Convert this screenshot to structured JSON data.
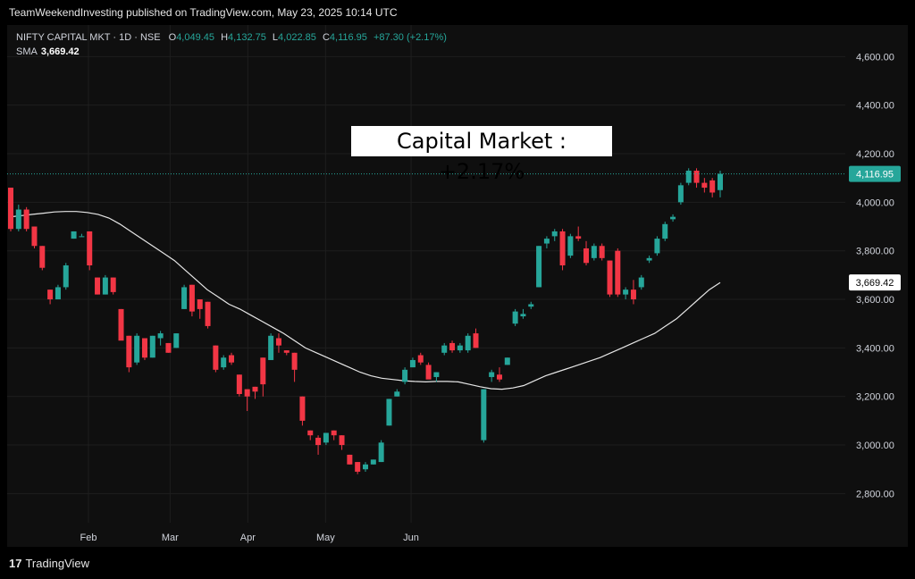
{
  "header": {
    "publisher": "TeamWeekendInvesting published on TradingView.com, May 23, 2025 10:14 UTC"
  },
  "legend": {
    "symbol": "NIFTY CAPITAL MKT · 1D · NSE",
    "open_label": "O",
    "open": "4,049.45",
    "high_label": "H",
    "high": "4,132.75",
    "low_label": "L",
    "low": "4,022.85",
    "close_label": "C",
    "close": "4,116.95",
    "change": "+87.30 (+2.17%)",
    "sma_label": "SMA",
    "sma_value": "3,669.42"
  },
  "annotation": "Capital Market : +2.17%",
  "footer": {
    "logo_mark": "17",
    "brand": "TradingView"
  },
  "colors": {
    "up": "#26a69a",
    "down": "#f23645",
    "sma": "#e6e6e6",
    "grid": "#1e1e1e"
  },
  "chart_data": {
    "type": "candlestick",
    "y_ticks": [
      "4,600.00",
      "4,400.00",
      "4,200.00",
      "4,000.00",
      "3,800.00",
      "3,600.00",
      "3,400.00",
      "3,200.00",
      "3,000.00",
      "2,800.00"
    ],
    "y_tick_values": [
      4600,
      4400,
      4200,
      4000,
      3800,
      3600,
      3400,
      3200,
      3000,
      2800
    ],
    "ylim": [
      2680,
      4730
    ],
    "x_ticks": [
      "Feb",
      "Mar",
      "Apr",
      "May",
      "Jun"
    ],
    "x_tick_index": [
      20,
      41,
      61,
      81,
      103
    ],
    "x_count": 120,
    "last_price_label": "4,116.95",
    "last_price": 4116.95,
    "sma_label": "3,669.42",
    "sma_last": 3669.42,
    "candles": [
      [
        4060,
        4060,
        3880,
        3890
      ],
      [
        3890,
        3990,
        3880,
        3970
      ],
      [
        3970,
        3980,
        3880,
        3890
      ],
      [
        3900,
        3900,
        3810,
        3820
      ],
      [
        3820,
        3820,
        3720,
        3730
      ],
      [
        3640,
        3640,
        3580,
        3600
      ],
      [
        3600,
        3660,
        3600,
        3650
      ],
      [
        3650,
        3750,
        3640,
        3740
      ],
      [
        3850,
        3880,
        3850,
        3880
      ],
      [
        3860,
        3870,
        3860,
        3860
      ],
      [
        3880,
        3880,
        3720,
        3740
      ],
      [
        3690,
        3690,
        3620,
        3620
      ],
      [
        3620,
        3700,
        3620,
        3690
      ],
      [
        3690,
        3690,
        3620,
        3630
      ],
      [
        3560,
        3560,
        3440,
        3430
      ],
      [
        3450,
        3450,
        3300,
        3320
      ],
      [
        3340,
        3460,
        3330,
        3450
      ],
      [
        3440,
        3440,
        3350,
        3360
      ],
      [
        3360,
        3450,
        3360,
        3450
      ],
      [
        3440,
        3470,
        3410,
        3460
      ],
      [
        3420,
        3420,
        3380,
        3380
      ],
      [
        3400,
        3460,
        3400,
        3460
      ],
      [
        3560,
        3660,
        3560,
        3650
      ],
      [
        3660,
        3660,
        3530,
        3550
      ],
      [
        3600,
        3600,
        3520,
        3560
      ],
      [
        3590,
        3590,
        3480,
        3490
      ],
      [
        3410,
        3410,
        3300,
        3310
      ],
      [
        3320,
        3370,
        3310,
        3360
      ],
      [
        3370,
        3380,
        3330,
        3340
      ],
      [
        3290,
        3290,
        3200,
        3210
      ],
      [
        3230,
        3230,
        3140,
        3200
      ],
      [
        3240,
        3240,
        3190,
        3220
      ],
      [
        3360,
        3360,
        3200,
        3250
      ],
      [
        3350,
        3460,
        3350,
        3450
      ],
      [
        3440,
        3460,
        3380,
        3410
      ],
      [
        3390,
        3390,
        3370,
        3380
      ],
      [
        3380,
        3380,
        3260,
        3310
      ],
      [
        3200,
        3200,
        3080,
        3100
      ],
      [
        3060,
        3060,
        3020,
        3040
      ],
      [
        3030,
        3040,
        2960,
        3000
      ],
      [
        3010,
        3050,
        3000,
        3050
      ],
      [
        3060,
        3060,
        3020,
        3040
      ],
      [
        3040,
        3040,
        2980,
        3000
      ],
      [
        2960,
        2960,
        2920,
        2920
      ],
      [
        2930,
        2930,
        2880,
        2890
      ],
      [
        2900,
        2930,
        2890,
        2920
      ],
      [
        2920,
        2940,
        2920,
        2940
      ],
      [
        2930,
        3020,
        2930,
        3010
      ],
      [
        3080,
        3190,
        3080,
        3190
      ],
      [
        3200,
        3230,
        3200,
        3220
      ],
      [
        3260,
        3320,
        3250,
        3310
      ],
      [
        3320,
        3360,
        3320,
        3350
      ],
      [
        3370,
        3380,
        3330,
        3340
      ],
      [
        3330,
        3340,
        3280,
        3270
      ],
      [
        3280,
        3300,
        3260,
        3300
      ],
      [
        3380,
        3420,
        3370,
        3410
      ],
      [
        3420,
        3430,
        3380,
        3390
      ],
      [
        3390,
        3420,
        3380,
        3410
      ],
      [
        3390,
        3460,
        3380,
        3450
      ],
      [
        3460,
        3480,
        3400,
        3400
      ],
      [
        3020,
        3230,
        3010,
        3230
      ],
      [
        3280,
        3310,
        3260,
        3300
      ],
      [
        3290,
        3320,
        3260,
        3270
      ],
      [
        3330,
        3360,
        3330,
        3360
      ],
      [
        3500,
        3560,
        3490,
        3550
      ],
      [
        3530,
        3560,
        3520,
        3540
      ],
      [
        3570,
        3590,
        3560,
        3580
      ],
      [
        3650,
        3820,
        3650,
        3820
      ],
      [
        3830,
        3860,
        3810,
        3850
      ],
      [
        3860,
        3890,
        3840,
        3880
      ],
      [
        3880,
        3890,
        3720,
        3740
      ],
      [
        3780,
        3870,
        3770,
        3860
      ],
      [
        3860,
        3900,
        3840,
        3850
      ],
      [
        3810,
        3840,
        3740,
        3750
      ],
      [
        3770,
        3830,
        3760,
        3820
      ],
      [
        3820,
        3830,
        3760,
        3770
      ],
      [
        3760,
        3760,
        3610,
        3620
      ],
      [
        3800,
        3810,
        3610,
        3620
      ],
      [
        3620,
        3650,
        3600,
        3640
      ],
      [
        3640,
        3680,
        3580,
        3600
      ],
      [
        3650,
        3700,
        3640,
        3690
      ],
      [
        3760,
        3780,
        3750,
        3770
      ],
      [
        3790,
        3860,
        3780,
        3850
      ],
      [
        3850,
        3920,
        3840,
        3910
      ],
      [
        3930,
        3950,
        3920,
        3940
      ],
      [
        4000,
        4080,
        3990,
        4070
      ],
      [
        4080,
        4140,
        4070,
        4130
      ],
      [
        4130,
        4140,
        4060,
        4080
      ],
      [
        4080,
        4100,
        4040,
        4060
      ],
      [
        4090,
        4100,
        4020,
        4040
      ],
      [
        4050,
        4130,
        4020,
        4117
      ]
    ],
    "candle_positions": [
      0,
      3,
      5,
      7,
      9,
      12,
      14,
      16,
      18,
      20,
      22,
      24,
      26,
      28,
      33,
      35,
      37,
      39,
      41,
      43,
      45,
      47,
      49,
      51,
      53,
      55,
      57,
      59,
      61,
      63,
      65,
      67,
      69,
      71,
      73,
      75,
      77,
      79,
      81,
      83,
      85,
      87,
      89,
      91,
      93,
      95,
      97,
      99,
      101,
      103,
      105,
      107,
      109,
      111,
      113,
      115,
      117,
      119,
      121,
      123,
      125,
      127,
      129,
      131,
      133,
      135,
      137,
      139,
      141,
      143,
      145,
      147,
      149,
      151,
      153,
      155,
      157,
      159,
      161,
      163,
      165,
      167,
      169,
      171,
      173,
      175,
      177,
      179,
      181,
      183,
      185
    ],
    "sma": [
      3940,
      3945,
      3950,
      3955,
      3960,
      3962,
      3962,
      3958,
      3950,
      3935,
      3910,
      3880,
      3850,
      3820,
      3790,
      3760,
      3720,
      3680,
      3640,
      3610,
      3580,
      3560,
      3535,
      3510,
      3485,
      3460,
      3430,
      3400,
      3380,
      3360,
      3340,
      3320,
      3300,
      3285,
      3275,
      3270,
      3265,
      3262,
      3260,
      3262,
      3262,
      3260,
      3250,
      3240,
      3232,
      3230,
      3235,
      3245,
      3265,
      3285,
      3300,
      3315,
      3330,
      3345,
      3360,
      3380,
      3400,
      3420,
      3440,
      3460,
      3490,
      3520,
      3560,
      3600,
      3640,
      3669
    ]
  }
}
